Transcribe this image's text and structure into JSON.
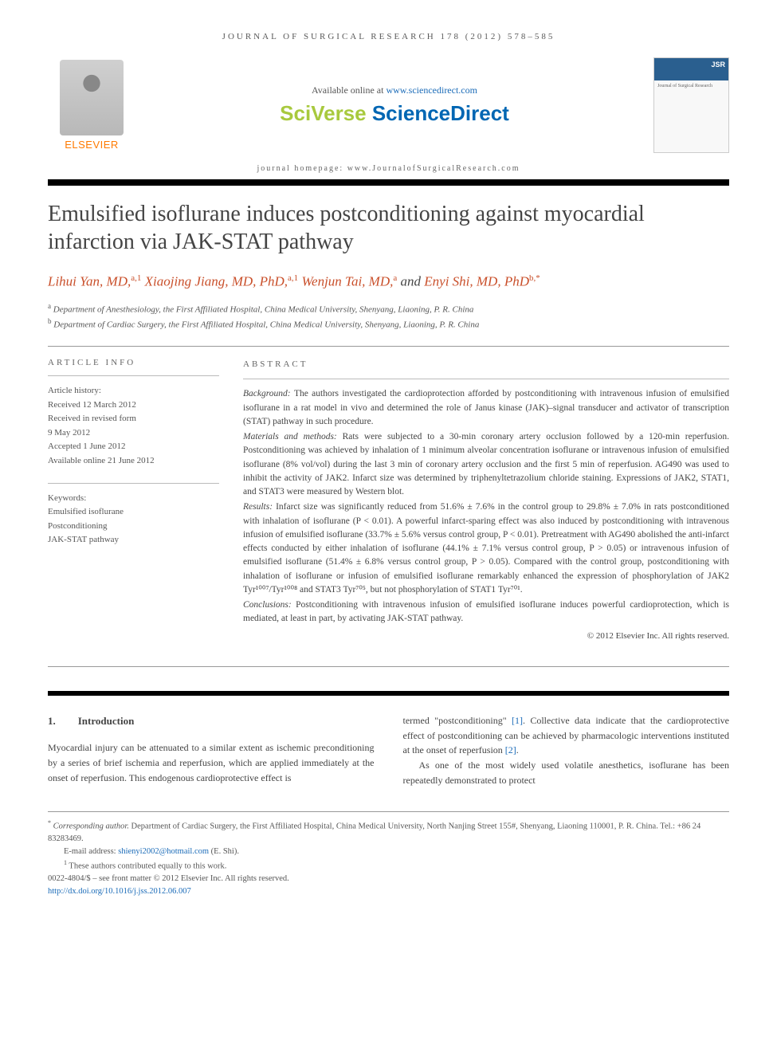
{
  "header": {
    "citation": "JOURNAL OF SURGICAL RESEARCH 178 (2012) 578–585",
    "available_prefix": "Available online at ",
    "available_link": "www.sciencedirect.com",
    "sciverse_1": "SciVerse ",
    "sciverse_2": "ScienceDirect",
    "cover_brand": "JSR",
    "cover_sub": "Journal of Surgical Research",
    "homepage_prefix": "journal homepage: ",
    "homepage_url": "www.JournalofSurgicalResearch.com"
  },
  "elsevier": "ELSEVIER",
  "title": "Emulsified isoflurane induces postconditioning against myocardial infarction via JAK-STAT pathway",
  "authors": {
    "a1_name": "Lihui Yan, MD,",
    "a1_sup": "a,1",
    "a2_name": " Xiaojing Jiang, MD, PhD,",
    "a2_sup": "a,1",
    "a3_name": " Wenjun Tai, MD,",
    "a3_sup": "a",
    "and": " and ",
    "a4_name": "Enyi Shi, MD, PhD",
    "a4_sup": "b,*"
  },
  "affiliations": {
    "a_sup": "a",
    "a_text": " Department of Anesthesiology, the First Affiliated Hospital, China Medical University, Shenyang, Liaoning, P. R. China",
    "b_sup": "b",
    "b_text": " Department of Cardiac Surgery, the First Affiliated Hospital, China Medical University, Shenyang, Liaoning, P. R. China"
  },
  "article_info": {
    "heading": "ARTICLE INFO",
    "history_label": "Article history:",
    "received": "Received 12 March 2012",
    "revised1": "Received in revised form",
    "revised2": "9 May 2012",
    "accepted": "Accepted 1 June 2012",
    "online": "Available online 21 June 2012",
    "keywords_label": "Keywords:",
    "kw1": "Emulsified isoflurane",
    "kw2": "Postconditioning",
    "kw3": "JAK-STAT pathway"
  },
  "abstract": {
    "heading": "ABSTRACT",
    "bg_label": "Background: ",
    "bg_text": "The authors investigated the cardioprotection afforded by postconditioning with intravenous infusion of emulsified isoflurane in a rat model in vivo and determined the role of Janus kinase (JAK)–signal transducer and activator of transcription (STAT) pathway in such procedure.",
    "mm_label": "Materials and methods: ",
    "mm_text": "Rats were subjected to a 30-min coronary artery occlusion followed by a 120-min reperfusion. Postconditioning was achieved by inhalation of 1 minimum alveolar concentration isoflurane or intravenous infusion of emulsified isoflurane (8% vol/vol) during the last 3 min of coronary artery occlusion and the first 5 min of reperfusion. AG490 was used to inhibit the activity of JAK2. Infarct size was determined by triphenyltetrazolium chloride staining. Expressions of JAK2, STAT1, and STAT3 were measured by Western blot.",
    "res_label": "Results: ",
    "res_text": "Infarct size was significantly reduced from 51.6% ± 7.6% in the control group to 29.8% ± 7.0% in rats postconditioned with inhalation of isoflurane (P < 0.01). A powerful infarct-sparing effect was also induced by postconditioning with intravenous infusion of emulsified isoflurane (33.7% ± 5.6% versus control group, P < 0.01). Pretreatment with AG490 abolished the anti-infarct effects conducted by either inhalation of isoflurane (44.1% ± 7.1% versus control group, P > 0.05) or intravenous infusion of emulsified isoflurane (51.4% ± 6.8% versus control group, P > 0.05). Compared with the control group, postconditioning with inhalation of isoflurane or infusion of emulsified isoflurane remarkably enhanced the expression of phosphorylation of JAK2 Tyr¹⁰⁰⁷/Tyr¹⁰⁰⁸ and STAT3 Tyr⁷⁰⁵, but not phosphorylation of STAT1 Tyr⁷⁰¹.",
    "con_label": "Conclusions: ",
    "con_text": "Postconditioning with intravenous infusion of emulsified isoflurane induces powerful cardioprotection, which is mediated, at least in part, by activating JAK-STAT pathway.",
    "copyright": "© 2012 Elsevier Inc. All rights reserved."
  },
  "intro": {
    "num": "1.",
    "heading": "Introduction",
    "left_p": "Myocardial injury can be attenuated to a similar extent as ischemic preconditioning by a series of brief ischemia and reperfusion, which are applied immediately at the onset of reperfusion. This endogenous cardioprotective effect is",
    "right_p1a": "termed \"postconditioning\" ",
    "right_ref1": "[1]",
    "right_p1b": ". Collective data indicate that the cardioprotective effect of postconditioning can be achieved by pharmacologic interventions instituted at the onset of reperfusion ",
    "right_ref2": "[2]",
    "right_p1c": ".",
    "right_p2": "As one of the most widely used volatile anesthetics, isoflurane has been repeatedly demonstrated to protect"
  },
  "footer": {
    "corr_sup": "*",
    "corr_label": " Corresponding author. ",
    "corr_text": "Department of Cardiac Surgery, the First Affiliated Hospital, China Medical University, North Nanjing Street 155#, Shenyang, Liaoning 110001, P. R. China. Tel.: +86 24 83283469.",
    "email_label": "E-mail address: ",
    "email": "shienyi2002@hotmail.com",
    "email_suffix": " (E. Shi).",
    "note1_sup": "1",
    "note1": " These authors contributed equally to this work.",
    "issn": "0022-4804/$ – see front matter © 2012 Elsevier Inc. All rights reserved.",
    "doi": "http://dx.doi.org/10.1016/j.jss.2012.06.007"
  }
}
